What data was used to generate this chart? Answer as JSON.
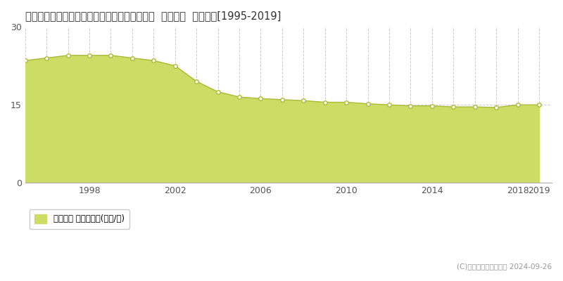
{
  "title": "大分県大分市大字森町字無田々通２４５番６５  基準地価  地価推移[1995-2019]",
  "years": [
    1995,
    1996,
    1997,
    1998,
    1999,
    2000,
    2001,
    2002,
    2003,
    2004,
    2005,
    2006,
    2007,
    2008,
    2009,
    2010,
    2011,
    2012,
    2013,
    2014,
    2015,
    2016,
    2017,
    2018,
    2019
  ],
  "values": [
    23.5,
    24.0,
    24.5,
    24.5,
    24.5,
    24.0,
    23.5,
    22.5,
    19.5,
    17.5,
    16.5,
    16.2,
    16.0,
    15.8,
    15.5,
    15.5,
    15.2,
    15.0,
    14.8,
    14.8,
    14.6,
    14.6,
    14.5,
    15.0,
    15.0
  ],
  "ylim": [
    0,
    30
  ],
  "yticks": [
    0,
    15,
    30
  ],
  "fill_color": "#ccdd66",
  "line_color": "#aabb33",
  "marker_face_color": "#ffffff",
  "marker_edge_color": "#aabb33",
  "grid_color": "#cccccc",
  "background_color": "#ffffff",
  "legend_label": "基準地価 平均坪単価(万円/坪)",
  "legend_square_color": "#ccdd66",
  "copyright_text": "(C)土地価格ドットコム 2024-09-26",
  "xtick_positions": [
    1998,
    2002,
    2006,
    2010,
    2014,
    2018,
    2019
  ],
  "xtick_labels": [
    "1998",
    "2002",
    "2006",
    "2010",
    "2014",
    "2018",
    "2019"
  ]
}
